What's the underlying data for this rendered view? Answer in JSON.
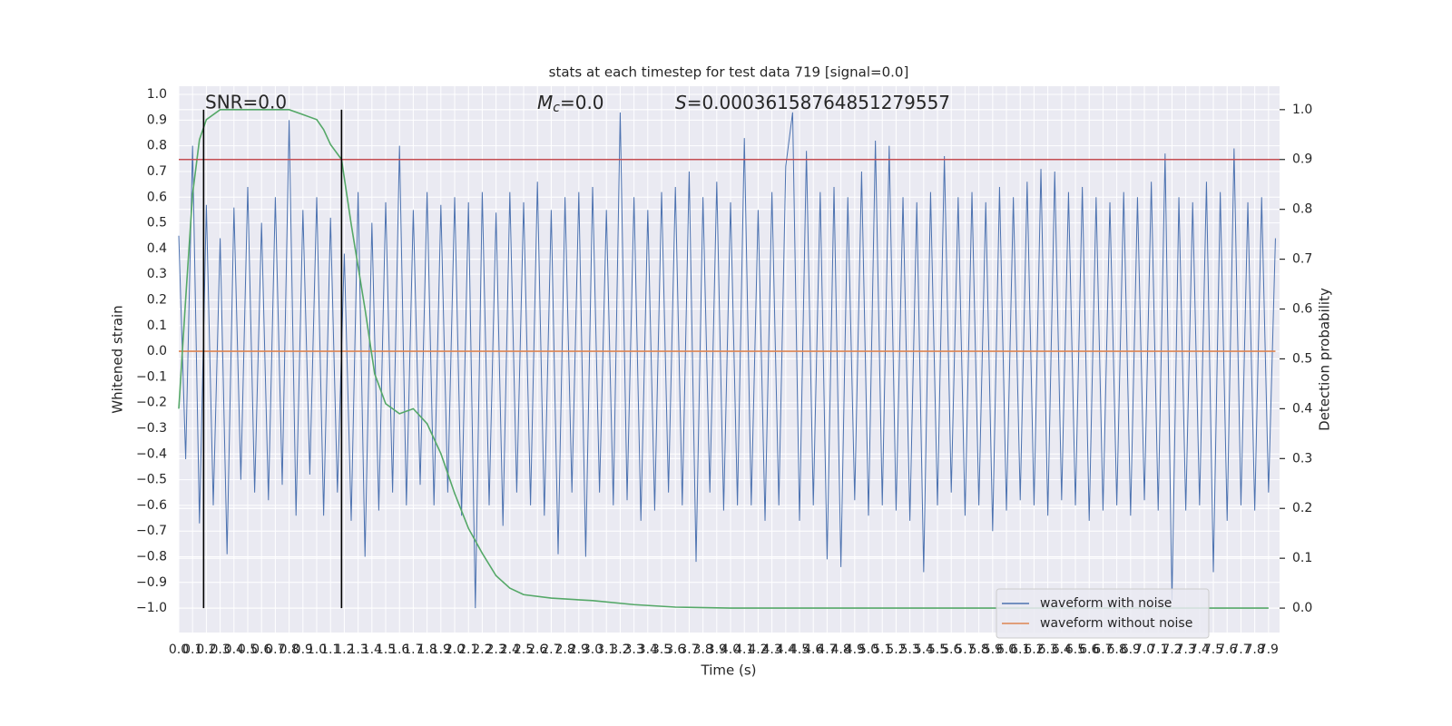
{
  "chart_data": {
    "type": "line",
    "title": "stats at each timestep for test data 719 [signal=0.0]",
    "xlabel": "Time (s)",
    "ylabel": "Whitened strain",
    "y2label": "Detection probability",
    "snr_label": "SNR=0.0",
    "mc_label": {
      "symbol": "M",
      "subscript": "c",
      "text": "=0.0"
    },
    "s_label": {
      "symbol": "S",
      "text": "=0.00036158764851279557"
    },
    "xlim": [
      0,
      7.98
    ],
    "ylim": [
      -1.095,
      1.032
    ],
    "y2lim": [
      -0.049,
      1.047
    ],
    "grid": true,
    "legend_loc": "lower right",
    "xticks": [
      {
        "value": 0,
        "label": "0.0"
      },
      {
        "value": 0.1,
        "label": "0.1"
      },
      {
        "value": 0.2,
        "label": "0.2"
      },
      {
        "value": 0.3,
        "label": "0.3"
      },
      {
        "value": 0.4,
        "label": "0.4"
      },
      {
        "value": 0.5,
        "label": "0.5"
      },
      {
        "value": 0.6,
        "label": "0.6"
      },
      {
        "value": 0.7,
        "label": "0.7"
      },
      {
        "value": 0.8,
        "label": "0.8"
      },
      {
        "value": 0.9,
        "label": "0.9"
      },
      {
        "value": 1,
        "label": "1.0"
      },
      {
        "value": 1.1,
        "label": "1.1"
      },
      {
        "value": 1.2,
        "label": "1.2"
      },
      {
        "value": 1.3,
        "label": "1.3"
      },
      {
        "value": 1.4,
        "label": "1.4"
      },
      {
        "value": 1.5,
        "label": "1.5"
      },
      {
        "value": 1.6,
        "label": "1.6"
      },
      {
        "value": 1.7,
        "label": "1.7"
      },
      {
        "value": 1.8,
        "label": "1.8"
      },
      {
        "value": 1.9,
        "label": "1.9"
      },
      {
        "value": 2,
        "label": "2.0"
      },
      {
        "value": 2.1,
        "label": "2.1"
      },
      {
        "value": 2.2,
        "label": "2.2"
      },
      {
        "value": 2.3,
        "label": "2.3"
      },
      {
        "value": 2.4,
        "label": "2.4"
      },
      {
        "value": 2.5,
        "label": "2.5"
      },
      {
        "value": 2.6,
        "label": "2.6"
      },
      {
        "value": 2.7,
        "label": "2.7"
      },
      {
        "value": 2.8,
        "label": "2.8"
      },
      {
        "value": 2.9,
        "label": "2.9"
      },
      {
        "value": 3,
        "label": "3.0"
      },
      {
        "value": 3.1,
        "label": "3.1"
      },
      {
        "value": 3.2,
        "label": "3.2"
      },
      {
        "value": 3.3,
        "label": "3.3"
      },
      {
        "value": 3.4,
        "label": "3.4"
      },
      {
        "value": 3.5,
        "label": "3.5"
      },
      {
        "value": 3.6,
        "label": "3.6"
      },
      {
        "value": 3.7,
        "label": "3.7"
      },
      {
        "value": 3.8,
        "label": "3.8"
      },
      {
        "value": 3.9,
        "label": "3.9"
      },
      {
        "value": 4,
        "label": "4.0"
      },
      {
        "value": 4.1,
        "label": "4.1"
      },
      {
        "value": 4.2,
        "label": "4.2"
      },
      {
        "value": 4.3,
        "label": "4.3"
      },
      {
        "value": 4.4,
        "label": "4.4"
      },
      {
        "value": 4.5,
        "label": "4.5"
      },
      {
        "value": 4.6,
        "label": "4.6"
      },
      {
        "value": 4.7,
        "label": "4.7"
      },
      {
        "value": 4.8,
        "label": "4.8"
      },
      {
        "value": 4.9,
        "label": "4.9"
      },
      {
        "value": 5,
        "label": "5.0"
      },
      {
        "value": 5.1,
        "label": "5.1"
      },
      {
        "value": 5.2,
        "label": "5.2"
      },
      {
        "value": 5.3,
        "label": "5.3"
      },
      {
        "value": 5.4,
        "label": "5.4"
      },
      {
        "value": 5.5,
        "label": "5.5"
      },
      {
        "value": 5.6,
        "label": "5.6"
      },
      {
        "value": 5.7,
        "label": "5.7"
      },
      {
        "value": 5.8,
        "label": "5.8"
      },
      {
        "value": 5.9,
        "label": "5.9"
      },
      {
        "value": 6,
        "label": "6.0"
      },
      {
        "value": 6.1,
        "label": "6.1"
      },
      {
        "value": 6.2,
        "label": "6.2"
      },
      {
        "value": 6.3,
        "label": "6.3"
      },
      {
        "value": 6.4,
        "label": "6.4"
      },
      {
        "value": 6.5,
        "label": "6.5"
      },
      {
        "value": 6.6,
        "label": "6.6"
      },
      {
        "value": 6.7,
        "label": "6.7"
      },
      {
        "value": 6.8,
        "label": "6.8"
      },
      {
        "value": 6.9,
        "label": "6.9"
      },
      {
        "value": 7,
        "label": "7.0"
      },
      {
        "value": 7.1,
        "label": "7.1"
      },
      {
        "value": 7.2,
        "label": "7.2"
      },
      {
        "value": 7.3,
        "label": "7.3"
      },
      {
        "value": 7.4,
        "label": "7.4"
      },
      {
        "value": 7.5,
        "label": "7.5"
      },
      {
        "value": 7.6,
        "label": "7.6"
      },
      {
        "value": 7.7,
        "label": "7.7"
      },
      {
        "value": 7.8,
        "label": "7.8"
      },
      {
        "value": 7.9,
        "label": "7.9"
      }
    ],
    "yticks": [
      {
        "value": -1,
        "label": "−1.0"
      },
      {
        "value": -0.9,
        "label": "−0.9"
      },
      {
        "value": -0.8,
        "label": "−0.8"
      },
      {
        "value": -0.7,
        "label": "−0.7"
      },
      {
        "value": -0.6,
        "label": "−0.6"
      },
      {
        "value": -0.5,
        "label": "−0.5"
      },
      {
        "value": -0.4,
        "label": "−0.4"
      },
      {
        "value": -0.3,
        "label": "−0.3"
      },
      {
        "value": -0.2,
        "label": "−0.2"
      },
      {
        "value": -0.1,
        "label": "−0.1"
      },
      {
        "value": 0,
        "label": "0.0"
      },
      {
        "value": 0.1,
        "label": "0.1"
      },
      {
        "value": 0.2,
        "label": "0.2"
      },
      {
        "value": 0.3,
        "label": "0.3"
      },
      {
        "value": 0.4,
        "label": "0.4"
      },
      {
        "value": 0.5,
        "label": "0.5"
      },
      {
        "value": 0.6,
        "label": "0.6"
      },
      {
        "value": 0.7,
        "label": "0.7"
      },
      {
        "value": 0.8,
        "label": "0.8"
      },
      {
        "value": 0.9,
        "label": "0.9"
      },
      {
        "value": 1,
        "label": "1.0"
      }
    ],
    "y2ticks": [
      {
        "value": 0,
        "label": "0.0"
      },
      {
        "value": 0.1,
        "label": "0.1"
      },
      {
        "value": 0.2,
        "label": "0.2"
      },
      {
        "value": 0.3,
        "label": "0.3"
      },
      {
        "value": 0.4,
        "label": "0.4"
      },
      {
        "value": 0.5,
        "label": "0.5"
      },
      {
        "value": 0.6,
        "label": "0.6"
      },
      {
        "value": 0.7,
        "label": "0.7"
      },
      {
        "value": 0.8,
        "label": "0.8"
      },
      {
        "value": 0.9,
        "label": "0.9"
      },
      {
        "value": 1,
        "label": "1.0"
      }
    ],
    "vlines": {
      "x": [
        0.18,
        1.18
      ],
      "range": [
        0,
        1
      ],
      "axis": "y2",
      "color": "#000000"
    },
    "hline": {
      "y": 0.9,
      "axis": "y2",
      "color": "#c44e52"
    },
    "series": [
      {
        "name": "waveform with noise",
        "color": "#4c72b0",
        "x": [
          0,
          0.05,
          0.1,
          0.15,
          0.2,
          0.25,
          0.3,
          0.35,
          0.4,
          0.45,
          0.5,
          0.55,
          0.6,
          0.65,
          0.7,
          0.75,
          0.8,
          0.85,
          0.9,
          0.95,
          1,
          1.05,
          1.1,
          1.15,
          1.2,
          1.25,
          1.3,
          1.35,
          1.4,
          1.45,
          1.5,
          1.55,
          1.6,
          1.65,
          1.7,
          1.75,
          1.8,
          1.85,
          1.9,
          1.95,
          2,
          2.05,
          2.1,
          2.15,
          2.2,
          2.25,
          2.3,
          2.35,
          2.4,
          2.45,
          2.5,
          2.55,
          2.6,
          2.65,
          2.7,
          2.75,
          2.8,
          2.85,
          2.9,
          2.95,
          3,
          3.05,
          3.1,
          3.15,
          3.2,
          3.25,
          3.3,
          3.35,
          3.4,
          3.45,
          3.5,
          3.55,
          3.6,
          3.65,
          3.7,
          3.75,
          3.8,
          3.85,
          3.9,
          3.95,
          4,
          4.05,
          4.1,
          4.15,
          4.2,
          4.25,
          4.3,
          4.35,
          4.4,
          4.45,
          4.5,
          4.55,
          4.6,
          4.65,
          4.7,
          4.75,
          4.8,
          4.85,
          4.9,
          4.95,
          5,
          5.05,
          5.1,
          5.15,
          5.2,
          5.25,
          5.3,
          5.35,
          5.4,
          5.45,
          5.5,
          5.55,
          5.6,
          5.65,
          5.7,
          5.75,
          5.8,
          5.85,
          5.9,
          5.95,
          6,
          6.05,
          6.1,
          6.15,
          6.2,
          6.25,
          6.3,
          6.35,
          6.4,
          6.45,
          6.5,
          6.55,
          6.6,
          6.65,
          6.7,
          6.75,
          6.8,
          6.85,
          6.9,
          6.95,
          7,
          7.05,
          7.1,
          7.15,
          7.2,
          7.25,
          7.3,
          7.35,
          7.4,
          7.45,
          7.5,
          7.55,
          7.6,
          7.65,
          7.7,
          7.75,
          7.8,
          7.85,
          7.9,
          7.95
        ],
        "values": [
          0.45,
          -0.42,
          0.8,
          -0.67,
          0.57,
          -0.6,
          0.44,
          -0.79,
          0.56,
          -0.5,
          0.64,
          -0.55,
          0.5,
          -0.58,
          0.6,
          -0.52,
          0.9,
          -0.64,
          0.55,
          -0.48,
          0.6,
          -0.64,
          0.52,
          -0.55,
          0.38,
          -0.66,
          0.62,
          -0.8,
          0.5,
          -0.62,
          0.58,
          -0.55,
          0.8,
          -0.6,
          0.55,
          -0.52,
          0.62,
          -0.6,
          0.57,
          -0.55,
          0.6,
          -0.64,
          0.58,
          -1.0,
          0.62,
          -0.6,
          0.54,
          -0.68,
          0.62,
          -0.55,
          0.58,
          -0.6,
          0.66,
          -0.64,
          0.55,
          -0.79,
          0.6,
          -0.55,
          0.62,
          -0.8,
          0.64,
          -0.55,
          0.55,
          -0.6,
          0.93,
          -0.58,
          0.6,
          -0.66,
          0.55,
          -0.62,
          0.62,
          -0.55,
          0.64,
          -0.6,
          0.7,
          -0.82,
          0.6,
          -0.55,
          0.66,
          -0.62,
          0.58,
          -0.6,
          0.83,
          -0.6,
          0.55,
          -0.66,
          0.62,
          -0.6,
          0.72,
          0.93,
          -0.66,
          0.78,
          -0.6,
          0.62,
          -0.81,
          0.64,
          -0.84,
          0.6,
          -0.58,
          0.7,
          -0.64,
          0.82,
          -0.6,
          0.8,
          -0.62,
          0.6,
          -0.66,
          0.58,
          -0.86,
          0.62,
          -0.6,
          0.76,
          -0.55,
          0.6,
          -0.64,
          0.62,
          -0.6,
          0.58,
          -0.7,
          0.64,
          -0.62,
          0.6,
          -0.58,
          0.66,
          -0.6,
          0.71,
          -0.64,
          0.7,
          -0.58,
          0.62,
          -0.6,
          0.64,
          -0.66,
          0.6,
          -0.62,
          0.58,
          -0.6,
          0.62,
          -0.64,
          0.6,
          -0.58,
          0.66,
          -0.62,
          0.77,
          -0.97,
          0.6,
          -0.62,
          0.58,
          -0.6,
          0.66,
          -0.86,
          0.62,
          -0.66,
          0.79,
          -0.6,
          0.58,
          -0.62,
          0.6,
          -0.55,
          0.44
        ]
      },
      {
        "name": "waveform without noise",
        "color": "#dd8452",
        "x": [
          0,
          7.95
        ],
        "values": [
          0,
          0
        ]
      },
      {
        "color": "#55a868",
        "axis": "y2",
        "x": [
          0,
          0.05,
          0.1,
          0.15,
          0.2,
          0.25,
          0.3,
          0.4,
          0.5,
          0.6,
          0.7,
          0.8,
          0.9,
          1.0,
          1.05,
          1.1,
          1.18,
          1.25,
          1.35,
          1.42,
          1.5,
          1.6,
          1.7,
          1.8,
          1.9,
          2.0,
          2.1,
          2.2,
          2.3,
          2.4,
          2.5,
          2.7,
          3.0,
          3.3,
          3.6,
          4.0,
          5.0,
          6.0,
          7.0,
          7.9
        ],
        "values": [
          0.4,
          0.62,
          0.83,
          0.94,
          0.98,
          0.99,
          1.0,
          1.0,
          1.0,
          1.0,
          1.0,
          1.0,
          0.99,
          0.98,
          0.96,
          0.93,
          0.9,
          0.77,
          0.6,
          0.47,
          0.41,
          0.39,
          0.4,
          0.37,
          0.31,
          0.23,
          0.16,
          0.11,
          0.065,
          0.04,
          0.027,
          0.02,
          0.015,
          0.007,
          0.002,
          0,
          0,
          0,
          0,
          0
        ]
      }
    ]
  }
}
